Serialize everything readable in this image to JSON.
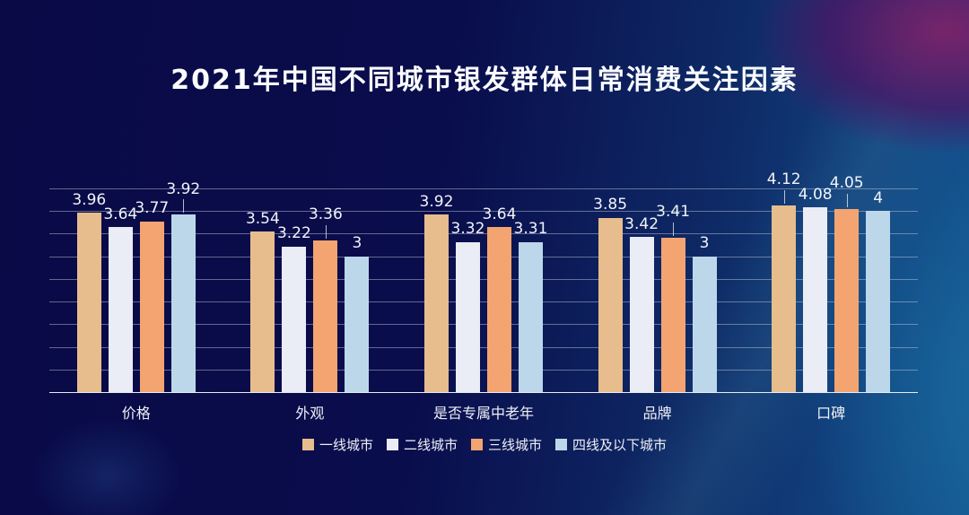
{
  "title": "2021年中国不同城市银发群体日常消费关注因素",
  "colors": {
    "background_left": "#090a46",
    "background_right": "#135490",
    "accent_purple": "#6d1d63",
    "title_text": "#fafcff",
    "value_label_text": "#f2f4f9",
    "gridline": "rgba(188,196,214,0.5)",
    "axis_line": "#e8ecf3",
    "series_colors": [
      "#e7bd8d",
      "#eaecf6",
      "#f3a470",
      "#bdd7ea"
    ]
  },
  "chart_data": {
    "type": "bar",
    "title": "2021年中国不同城市银发群体日常消费关注因素",
    "categories": [
      "价格",
      "外观",
      "是否专属中老年",
      "品牌",
      "口碑"
    ],
    "series": [
      {
        "name": "一线城市",
        "color": "#e7bd8d",
        "values": [
          3.96,
          3.54,
          3.92,
          3.85,
          4.12
        ]
      },
      {
        "name": "二线城市",
        "color": "#eaecf6",
        "values": [
          3.64,
          3.22,
          3.32,
          3.42,
          4.08
        ]
      },
      {
        "name": "三线城市",
        "color": "#f3a470",
        "values": [
          3.77,
          3.36,
          3.64,
          3.41,
          4.05
        ]
      },
      {
        "name": "四线及以下城市",
        "color": "#bdd7ea",
        "values": [
          3.92,
          3.0,
          3.31,
          3.0,
          4.0
        ]
      }
    ],
    "ylim": [
      0,
      4.5
    ],
    "grid_step": 0.5,
    "grid": true,
    "y_tick_labels_visible": false,
    "value_labels": true,
    "legend_position": "bottom",
    "label_leader_lines": [
      [
        0,
        3
      ],
      [
        1,
        2
      ],
      [
        3,
        2
      ],
      [
        4,
        0
      ],
      [
        4,
        2
      ]
    ]
  }
}
